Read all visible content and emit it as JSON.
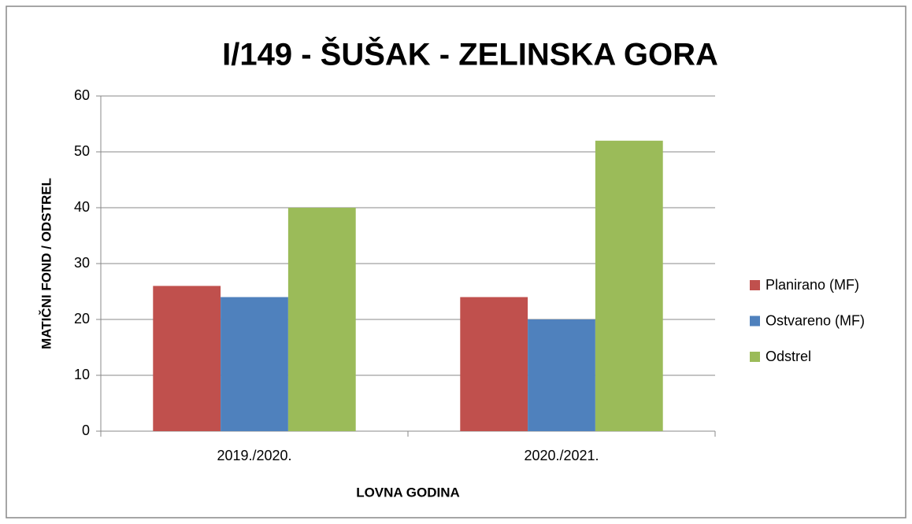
{
  "chart_data": {
    "type": "bar",
    "title": "I/149 - ŠUŠAK - ZELINSKA GORA",
    "x_label": "LOVNA GODINA",
    "y_label": "MATIČNI FOND / ODSTREL",
    "categories": [
      "2019./2020.",
      "2020./2021."
    ],
    "series": [
      {
        "name": "Planirano (MF)",
        "color": "#c0504d",
        "values": [
          26,
          24
        ]
      },
      {
        "name": "Ostvareno (MF)",
        "color": "#4f81bd",
        "values": [
          24,
          20
        ]
      },
      {
        "name": "Odstrel",
        "color": "#9bbb59",
        "values": [
          40,
          52
        ]
      }
    ],
    "ylim": [
      0,
      60
    ],
    "yticks": [
      0,
      10,
      20,
      30,
      40,
      50,
      60
    ],
    "grid": true,
    "legend": "right"
  }
}
